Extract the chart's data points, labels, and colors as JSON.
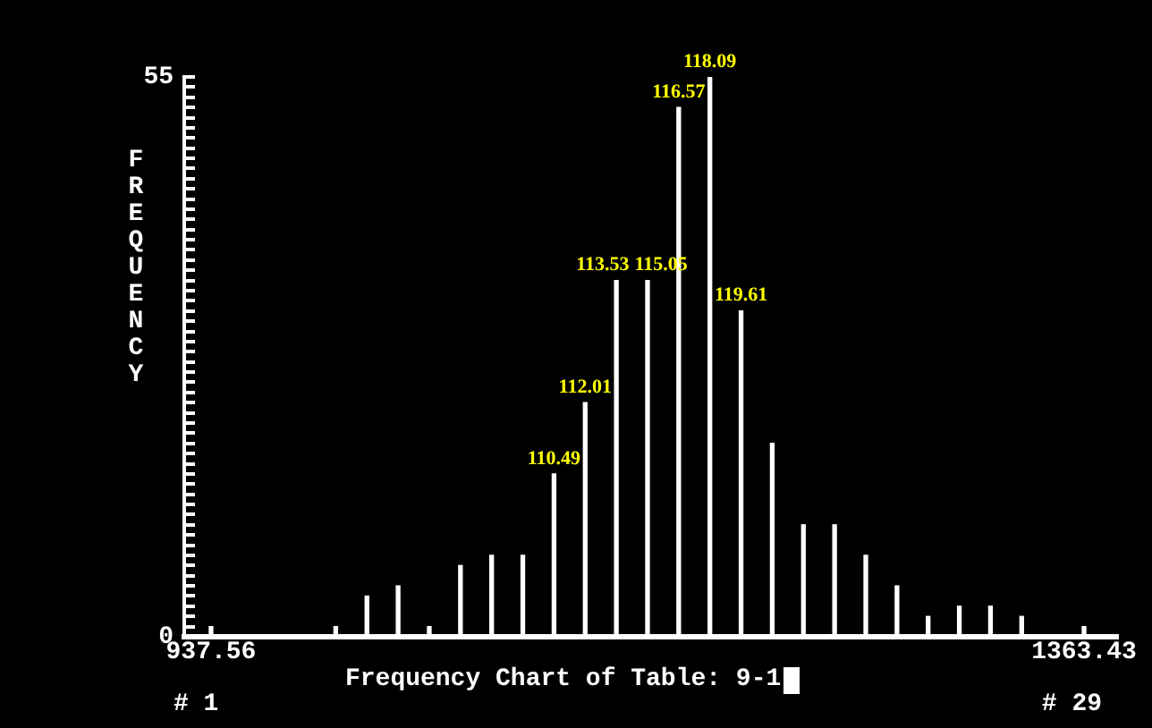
{
  "chart_data": {
    "type": "bar",
    "title": "Frequency Chart of Table: 9-1",
    "ylabel": "FREQUENCY",
    "x": [
      937.56,
      952.77,
      967.98,
      983.19,
      998.4,
      1013.61,
      1028.82,
      1044.03,
      1059.24,
      1074.45,
      1089.66,
      1104.87,
      1120.08,
      1135.29,
      1150.49,
      1165.7,
      1180.91,
      1196.12,
      1211.33,
      1226.54,
      1241.75,
      1256.96,
      1272.17,
      1287.38,
      1302.59,
      1317.8,
      1333.01,
      1348.22,
      1363.43
    ],
    "values": [
      1,
      0,
      0,
      0,
      1,
      4,
      5,
      1,
      7,
      8,
      8,
      16,
      23,
      35,
      35,
      52,
      55,
      32,
      19,
      11,
      11,
      8,
      5,
      2,
      3,
      3,
      2,
      0,
      1
    ],
    "color": "#ffffff",
    "xlim": [
      924.5,
      1380
    ],
    "xticks": [
      {
        "value": 937.56,
        "label": "937.56"
      },
      {
        "value": 1363.43,
        "label": "1363.43"
      }
    ],
    "ylim": [
      0,
      55
    ],
    "yticks": [
      0,
      {
        "value": 1,
        "label": null
      },
      {
        "value": 2,
        "label": null
      },
      {
        "value": 3,
        "label": null
      },
      {
        "value": 4,
        "label": null
      },
      {
        "value": 5,
        "label": null
      },
      {
        "value": 6,
        "label": null
      },
      {
        "value": 7,
        "label": null
      },
      {
        "value": 8,
        "label": null
      },
      {
        "value": 9,
        "label": null
      },
      {
        "value": 10,
        "label": null
      },
      {
        "value": 11,
        "label": null
      },
      {
        "value": 12,
        "label": null
      },
      {
        "value": 13,
        "label": null
      },
      {
        "value": 14,
        "label": null
      },
      {
        "value": 15,
        "label": null
      },
      {
        "value": 16,
        "label": null
      },
      {
        "value": 17,
        "label": null
      },
      {
        "value": 18,
        "label": null
      },
      {
        "value": 19,
        "label": null
      },
      {
        "value": 20,
        "label": null
      },
      {
        "value": 21,
        "label": null
      },
      {
        "value": 22,
        "label": null
      },
      {
        "value": 23,
        "label": null
      },
      {
        "value": 24,
        "label": null
      },
      {
        "value": 25,
        "label": null
      },
      {
        "value": 26,
        "label": null
      },
      {
        "value": 27,
        "label": null
      },
      {
        "value": 28,
        "label": null
      },
      {
        "value": 29,
        "label": null
      },
      {
        "value": 30,
        "label": null
      },
      {
        "value": 31,
        "label": null
      },
      {
        "value": 32,
        "label": null
      },
      {
        "value": 33,
        "label": null
      },
      {
        "value": 34,
        "label": null
      },
      {
        "value": 35,
        "label": null
      },
      {
        "value": 36,
        "label": null
      },
      {
        "value": 37,
        "label": null
      },
      {
        "value": 38,
        "label": null
      },
      {
        "value": 39,
        "label": null
      },
      {
        "value": 40,
        "label": null
      },
      {
        "value": 41,
        "label": null
      },
      {
        "value": 42,
        "label": null
      },
      {
        "value": 43,
        "label": null
      },
      {
        "value": 44,
        "label": null
      },
      {
        "value": 45,
        "label": null
      },
      {
        "value": 46,
        "label": null
      },
      {
        "value": 47,
        "label": null
      },
      {
        "value": 48,
        "label": null
      },
      {
        "value": 49,
        "label": null
      },
      {
        "value": 50,
        "label": null
      },
      {
        "value": 51,
        "label": null
      },
      {
        "value": 52,
        "label": null
      },
      {
        "value": 53,
        "label": null
      },
      {
        "value": 54,
        "label": null
      },
      55
    ],
    "grid": false,
    "legend": false,
    "annotations": [
      "# 1",
      "# 29",
      {
        "text": "110.49",
        "x": 1104.87,
        "y": 16
      },
      {
        "text": "112.01",
        "x": 1120.08,
        "y": 23
      },
      {
        "text": "113.53",
        "x": 1135.29,
        "y": 35
      },
      {
        "text": "115.05",
        "x": 1150.49,
        "y": 35
      },
      {
        "text": "116.57",
        "x": 1165.7,
        "y": 52
      },
      {
        "text": "118.09",
        "x": 1180.91,
        "y": 55
      },
      {
        "text": "119.61",
        "x": 1196.12,
        "y": 32
      }
    ]
  }
}
